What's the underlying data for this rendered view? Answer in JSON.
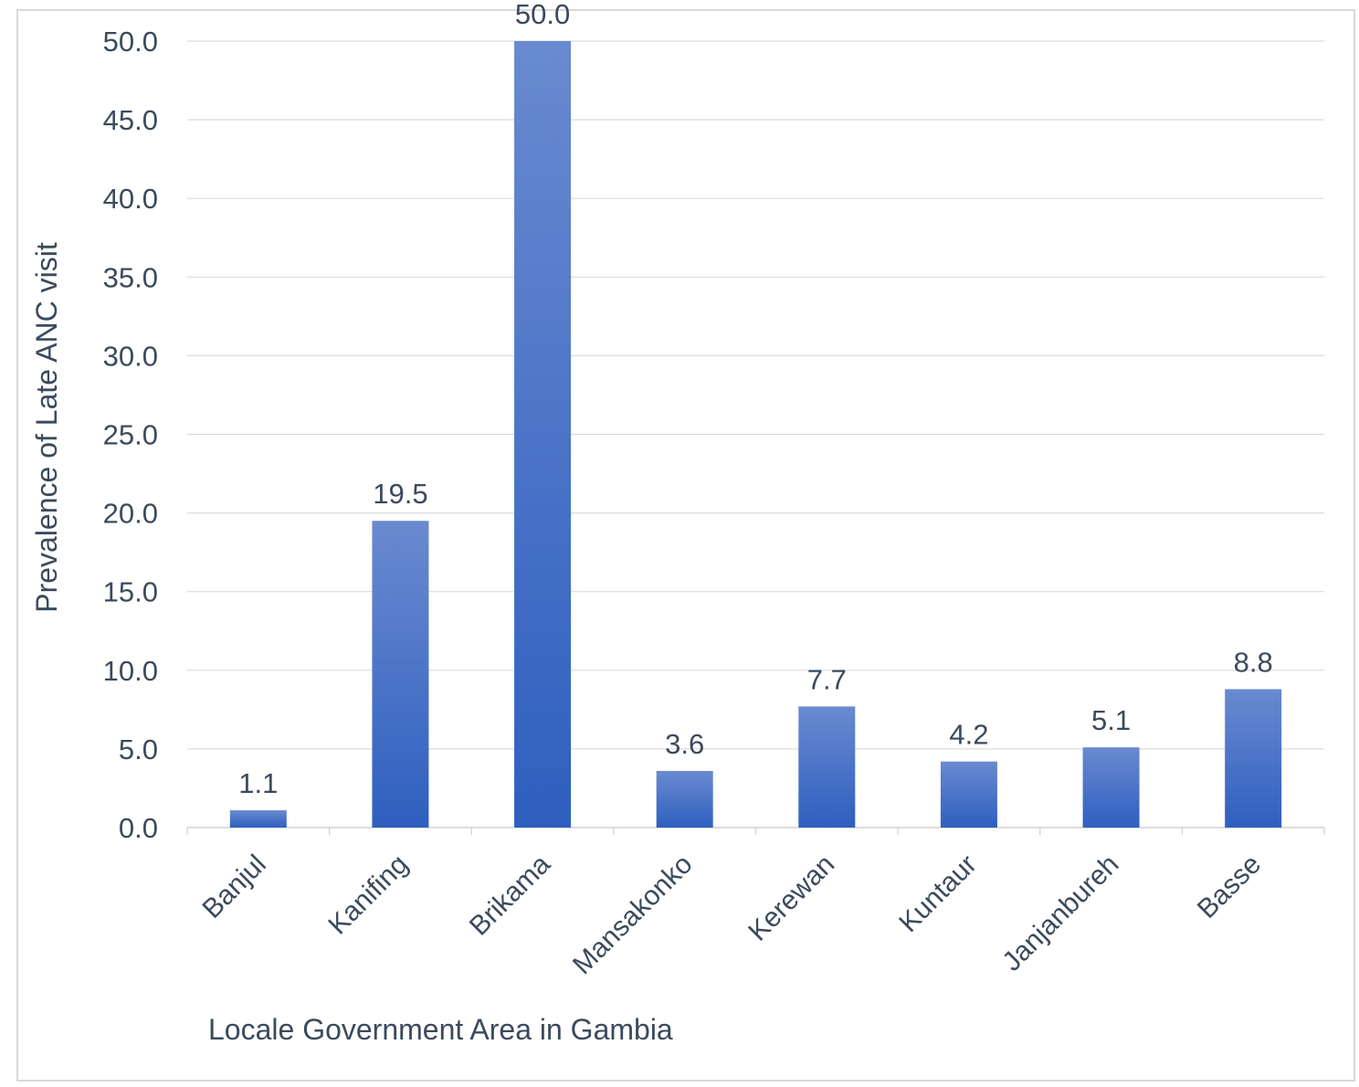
{
  "chart_data": {
    "type": "bar",
    "categories": [
      "Banjul",
      "Kanifing",
      "Brikama",
      "Mansakonko",
      "Kerewan",
      "Kuntaur",
      "Janjanbureh",
      "Basse"
    ],
    "values": [
      1.1,
      19.5,
      50.0,
      3.6,
      7.7,
      4.2,
      5.1,
      8.8
    ],
    "data_labels": [
      "1.1",
      "19.5",
      "50.0",
      "3.6",
      "7.7",
      "4.2",
      "5.1",
      "8.8"
    ],
    "xlabel": "Locale Government Area in Gambia",
    "ylabel": "Prevalence of Late ANC visit",
    "ylim": [
      0,
      50
    ],
    "yticks": [
      "0.0",
      "5.0",
      "10.0",
      "15.0",
      "20.0",
      "25.0",
      "30.0",
      "35.0",
      "40.0",
      "45.0",
      "50.0"
    ],
    "grid": true,
    "legend": "none",
    "colors": {
      "bar_top": "#6a8ad0",
      "bar_bottom": "#2e5fbf",
      "text": "#3b4a5c",
      "grid": "#dcdcdc"
    }
  }
}
